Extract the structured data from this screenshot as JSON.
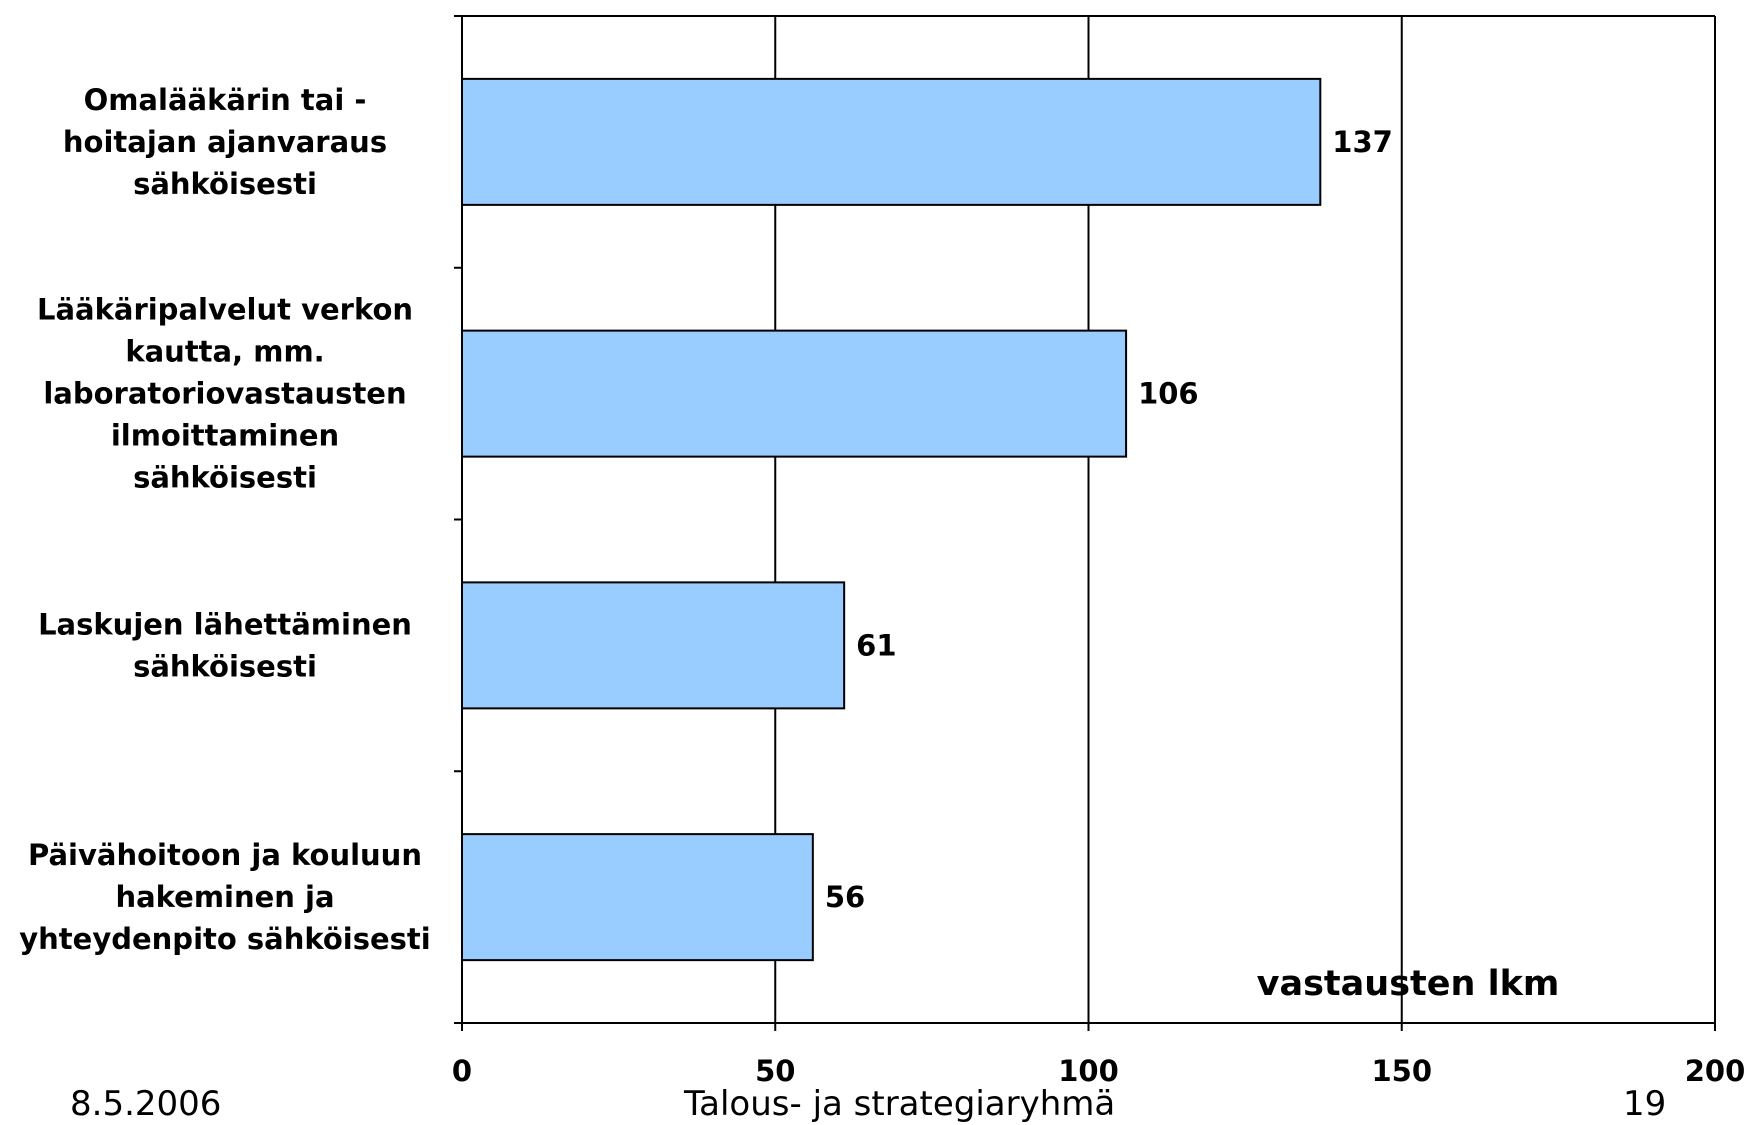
{
  "chart_data": {
    "type": "bar",
    "orientation": "horizontal",
    "categories": [
      [
        "Omalääkärin tai -",
        "hoitajan ajanvaraus",
        "sähköisesti"
      ],
      [
        "Lääkäripalvelut verkon",
        "kautta, mm.",
        "laboratoriovastausten",
        "ilmoittaminen",
        "sähköisesti"
      ],
      [
        "Laskujen lähettäminen",
        "sähköisesti"
      ],
      [
        "Päivähoitoon ja kouluun",
        "hakeminen ja",
        "yhteydenpito sähköisesti"
      ]
    ],
    "values": [
      137,
      106,
      61,
      56
    ],
    "value_labels": [
      "137",
      "106",
      "61",
      "56"
    ],
    "xlim": [
      0,
      200
    ],
    "xticks": [
      0,
      50,
      100,
      150,
      200
    ],
    "xtick_labels": [
      "0",
      "50",
      "100",
      "150",
      "200"
    ],
    "xlabel": "vastausten lkm",
    "grid": "vertical",
    "bar_color": "#99ccff",
    "bar_edge_color": "#000000"
  },
  "footer": {
    "date": "8.5.2006",
    "organization": "Talous- ja strategiaryhmä",
    "page_number": "19"
  }
}
